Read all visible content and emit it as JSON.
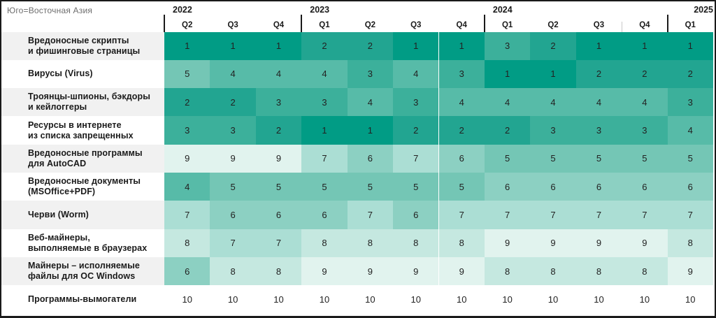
{
  "header": {
    "title": "Юго=Восточная Азия"
  },
  "columns": {
    "years": [
      {
        "label": "2022",
        "quarters": [
          "Q2",
          "Q3",
          "Q4"
        ]
      },
      {
        "label": "2023",
        "quarters": [
          "Q1",
          "Q2",
          "Q3",
          "Q4"
        ]
      },
      {
        "label": "2024",
        "quarters": [
          "Q1",
          "Q2",
          "Q3",
          "Q4"
        ]
      },
      {
        "label": "2025",
        "quarters": [
          "Q1"
        ]
      }
    ]
  },
  "chart_data": {
    "type": "heatmap",
    "title": "Юго=Восточная Азия",
    "columns": [
      "2022 Q2",
      "2022 Q3",
      "2022 Q4",
      "2023 Q1",
      "2023 Q2",
      "2023 Q3",
      "2023 Q4",
      "2024 Q1",
      "2024 Q2",
      "2024 Q3",
      "2024 Q4",
      "2025 Q1"
    ],
    "rows": [
      {
        "label_lines": [
          "Вредоносные скрипты",
          "и фишинговые страницы"
        ],
        "values": [
          1,
          1,
          1,
          2,
          2,
          1,
          1,
          3,
          2,
          1,
          1,
          1
        ]
      },
      {
        "label_lines": [
          "Вирусы (Virus)"
        ],
        "values": [
          5,
          4,
          4,
          4,
          3,
          4,
          3,
          1,
          1,
          2,
          2,
          2
        ]
      },
      {
        "label_lines": [
          "Троянцы-шпионы, бэкдоры",
          "и кейлоггеры"
        ],
        "values": [
          2,
          2,
          3,
          3,
          4,
          3,
          4,
          4,
          4,
          4,
          4,
          3
        ]
      },
      {
        "label_lines": [
          "Ресурсы в интернете",
          "из списка запрещенных"
        ],
        "values": [
          3,
          3,
          2,
          1,
          1,
          2,
          2,
          2,
          3,
          3,
          3,
          4
        ]
      },
      {
        "label_lines": [
          "Вредоносные программы",
          "для AutoCAD"
        ],
        "values": [
          9,
          9,
          9,
          7,
          6,
          7,
          6,
          5,
          5,
          5,
          5,
          5
        ]
      },
      {
        "label_lines": [
          "Вредоносные документы",
          "(MSOffice+PDF)"
        ],
        "values": [
          4,
          5,
          5,
          5,
          5,
          5,
          5,
          6,
          6,
          6,
          6,
          6
        ]
      },
      {
        "label_lines": [
          "Черви (Worm)"
        ],
        "values": [
          7,
          6,
          6,
          6,
          7,
          6,
          7,
          7,
          7,
          7,
          7,
          7
        ]
      },
      {
        "label_lines": [
          "Веб-майнеры,",
          "выполняемые в браузерах"
        ],
        "values": [
          8,
          7,
          7,
          8,
          8,
          8,
          8,
          9,
          9,
          9,
          9,
          8
        ]
      },
      {
        "label_lines": [
          "Майнеры – исполняемые",
          "файлы для ОС Windows"
        ],
        "values": [
          6,
          8,
          8,
          9,
          9,
          9,
          9,
          8,
          8,
          8,
          8,
          9
        ]
      },
      {
        "label_lines": [
          "Программы-вымогатели"
        ],
        "values": [
          10,
          10,
          10,
          10,
          10,
          10,
          10,
          10,
          10,
          10,
          10,
          10
        ]
      }
    ],
    "rank_range": [
      1,
      10
    ],
    "rank_colors": [
      "#019C85",
      "#22A591",
      "#3CB09B",
      "#57BBA8",
      "#74C6B5",
      "#8CD0C2",
      "#ABDED4",
      "#C5E8E0",
      "#E1F3EE",
      "#FFFFFF"
    ],
    "legend_position": "none",
    "grid": false
  },
  "colors": {
    "border": "#1A1A1A",
    "row_band": "#F1F1F1",
    "row_plain": "#FFFFFF",
    "title_text": "#6D6D6D",
    "header_text": "#1A1A1A",
    "cell_text": "#222222"
  }
}
